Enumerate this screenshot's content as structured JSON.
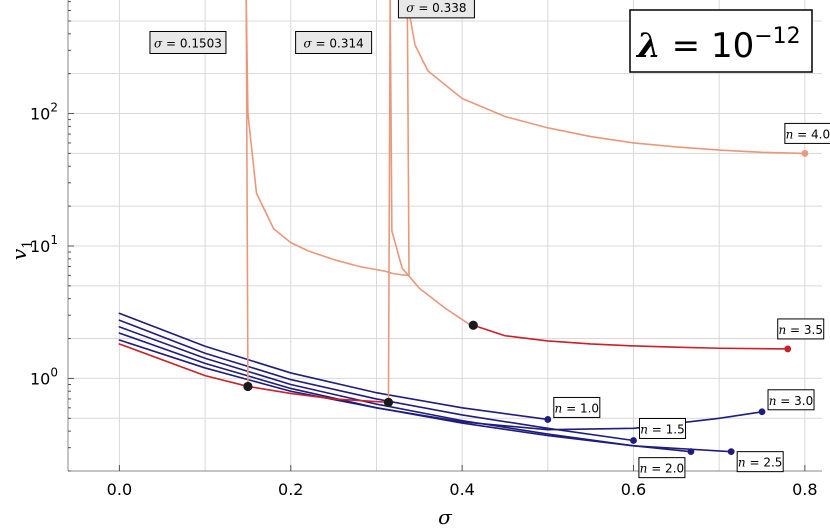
{
  "chart_data": {
    "type": "line",
    "title": "λ = 10⁻¹²",
    "title_parts": {
      "lambda": "λ",
      "eq": " = 10",
      "exp": "−12"
    },
    "xlabel": "σ",
    "ylabel": "v",
    "ylabel_sub": "1",
    "xlim": [
      -0.06,
      0.82
    ],
    "ylim": [
      0.2,
      720
    ],
    "yscale": "log",
    "grid": true,
    "x_ticks": [
      {
        "value": 0.0,
        "label": "0.0"
      },
      {
        "value": 0.2,
        "label": "0.2"
      },
      {
        "value": 0.4,
        "label": "0.4"
      },
      {
        "value": 0.6,
        "label": "0.6"
      },
      {
        "value": 0.8,
        "label": "0.8"
      }
    ],
    "y_ticks": [
      {
        "value": 1,
        "base": "10",
        "exp": "0"
      },
      {
        "value": 10,
        "base": "10",
        "exp": "1"
      },
      {
        "value": 100,
        "base": "10",
        "exp": "2"
      }
    ],
    "colors": {
      "blue": "#1f1c7d",
      "red": "#cc1f27",
      "salmon": "#e8997c",
      "marker": "#1a1a1a",
      "grid": "#d9d9d9"
    },
    "series": [
      {
        "name": "n = 1.0",
        "n": "1.0",
        "color": "#1f1c7d",
        "type": "curve",
        "x": [
          0.0,
          0.1,
          0.2,
          0.3,
          0.4,
          0.5
        ],
        "y": [
          3.1,
          1.75,
          1.1,
          0.78,
          0.6,
          0.49
        ],
        "end_marker": true
      },
      {
        "name": "n = 1.5",
        "n": "1.5",
        "color": "#1f1c7d",
        "type": "curve",
        "x": [
          0.0,
          0.1,
          0.2,
          0.3,
          0.4,
          0.5,
          0.6
        ],
        "y": [
          2.75,
          1.55,
          0.98,
          0.7,
          0.53,
          0.42,
          0.34
        ],
        "end_marker": true
      },
      {
        "name": "n = 2.0",
        "n": "2.0",
        "color": "#1f1c7d",
        "type": "curve",
        "x": [
          0.0,
          0.1,
          0.2,
          0.3,
          0.4,
          0.5,
          0.6,
          0.667
        ],
        "y": [
          2.45,
          1.42,
          0.9,
          0.64,
          0.48,
          0.38,
          0.31,
          0.28
        ],
        "end_marker": true
      },
      {
        "name": "n = 2.5",
        "n": "2.5",
        "color": "#1f1c7d",
        "type": "curve",
        "x": [
          0.0,
          0.1,
          0.2,
          0.3,
          0.4,
          0.5,
          0.6,
          0.714
        ],
        "y": [
          2.2,
          1.3,
          0.84,
          0.6,
          0.46,
          0.37,
          0.31,
          0.28
        ],
        "end_marker": true
      },
      {
        "name": "n = 3.0",
        "n": "3.0",
        "color": "#1f1c7d",
        "type": "curve",
        "x": [
          0.0,
          0.1,
          0.2,
          0.3,
          0.4,
          0.5,
          0.6,
          0.7,
          0.75
        ],
        "y": [
          1.95,
          1.2,
          0.8,
          0.6,
          0.47,
          0.41,
          0.42,
          0.5,
          0.56
        ],
        "end_marker": true
      },
      {
        "name": "n = 3.5",
        "n": "3.5",
        "color": "#cc1f27",
        "type": "curve",
        "x": [
          0.0,
          0.1,
          0.15
        ],
        "y": [
          1.82,
          1.05,
          0.87
        ],
        "end_marker": false
      },
      {
        "name": "n = 3.5",
        "n": "3.5",
        "color": "#cc1f27",
        "type": "curve",
        "x": [
          0.15,
          0.2,
          0.25,
          0.314
        ],
        "y": [
          0.87,
          0.77,
          0.7,
          0.66
        ],
        "end_marker": false
      },
      {
        "name": "n = 3.5",
        "n": "3.5",
        "color": "#cc1f27",
        "type": "curve",
        "x": [
          0.413,
          0.45,
          0.5,
          0.55,
          0.6,
          0.65,
          0.7,
          0.78
        ],
        "y": [
          2.52,
          2.1,
          1.92,
          1.82,
          1.76,
          1.72,
          1.69,
          1.67
        ],
        "end_marker": true
      },
      {
        "name": "",
        "color": "#e8997c",
        "type": "curve",
        "x": [
          0.148,
          0.15,
          0.16,
          0.18,
          0.2,
          0.22,
          0.25,
          0.28,
          0.31,
          0.3155,
          0.319,
          0.33,
          0.338
        ],
        "y": [
          720,
          100,
          25,
          13.5,
          10.6,
          9.2,
          7.9,
          7.0,
          6.45,
          6.3,
          6.2,
          6.05,
          6.0
        ],
        "end_marker": false
      },
      {
        "name": "",
        "color": "#e8997c",
        "type": "curve",
        "x": [
          0.316,
          0.318,
          0.33,
          0.35,
          0.38,
          0.41
        ],
        "y": [
          720,
          13,
          6.8,
          4.8,
          3.4,
          2.52
        ],
        "end_marker": false
      },
      {
        "name": "",
        "color": "#e8997c",
        "type": "curve",
        "x": [
          0.336,
          0.34,
          0.345,
          0.36,
          0.4,
          0.45,
          0.5,
          0.55,
          0.6,
          0.65,
          0.7,
          0.75,
          0.8
        ],
        "y": [
          720,
          500,
          330,
          210,
          130,
          95,
          78,
          67,
          60,
          56,
          53,
          51,
          50
        ],
        "end_marker": true
      },
      {
        "name": "",
        "color": "#e8997c",
        "type": "segment",
        "x": [
          0.15,
          0.148
        ],
        "y": [
          0.87,
          720
        ],
        "end_marker": false
      },
      {
        "name": "",
        "color": "#e8997c",
        "type": "segment",
        "x": [
          0.314,
          0.316
        ],
        "y": [
          0.66,
          720
        ],
        "end_marker": false
      },
      {
        "name": "",
        "color": "#e8997c",
        "type": "segment",
        "x": [
          0.338,
          0.336
        ],
        "y": [
          6.0,
          720
        ],
        "end_marker": false
      }
    ],
    "black_points": [
      {
        "x": 0.15,
        "y": 0.87
      },
      {
        "x": 0.314,
        "y": 0.66
      },
      {
        "x": 0.413,
        "y": 2.52
      }
    ],
    "n_labels": [
      {
        "n": "1.0",
        "x": 0.5,
        "y": 0.49,
        "dx": 6,
        "dy": -22
      },
      {
        "n": "1.5",
        "x": 0.6,
        "y": 0.34,
        "dx": 6,
        "dy": -22
      },
      {
        "n": "2.0",
        "x": 0.667,
        "y": 0.28,
        "dx": -52,
        "dy": 6
      },
      {
        "n": "2.5",
        "x": 0.714,
        "y": 0.28,
        "dx": 6,
        "dy": 0
      },
      {
        "n": "3.0",
        "x": 0.75,
        "y": 0.56,
        "dx": 6,
        "dy": -22
      },
      {
        "n": "3.5",
        "x": 0.78,
        "y": 1.67,
        "dx": -10,
        "dy": -30
      },
      {
        "n": "4.0",
        "x": 0.8,
        "y": 50,
        "dx": -20,
        "dy": -30
      }
    ],
    "sigma_labels": [
      {
        "value": "0.1503",
        "x": 0.08,
        "y": 350
      },
      {
        "value": "0.314",
        "x": 0.25,
        "y": 350
      },
      {
        "value": "0.338",
        "x": 0.37,
        "y": 650
      }
    ]
  }
}
